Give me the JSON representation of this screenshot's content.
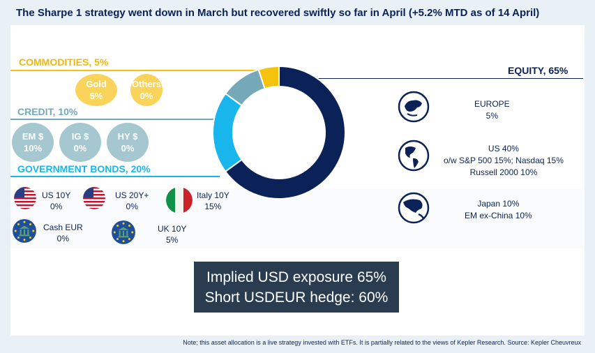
{
  "title": "The Sharpe 1 strategy went down in March but recovered swiftly so far in April (+5.2% MTD as of 14 April)",
  "colors": {
    "equity": "#0b2259",
    "gov": "#19b6ee",
    "credit": "#75a9b8",
    "commodities": "#f5c20d",
    "navy": "#0b2259"
  },
  "sections": {
    "commodities": "COMMODITIES, 5%",
    "credit": "CREDIT, 10%",
    "government_bonds": "GOVERNMENT BONDS, 20%",
    "equity": "EQUITY, 65%"
  },
  "commodities_items": [
    {
      "name": "Gold",
      "pct": "5%"
    },
    {
      "name": "Others",
      "pct": "0%"
    }
  ],
  "credit_items": [
    {
      "name": "EM $",
      "pct": "10%"
    },
    {
      "name": "IG $",
      "pct": "0%"
    },
    {
      "name": "HY $",
      "pct": "0%"
    }
  ],
  "gov_items": [
    {
      "name": "US 10Y",
      "pct": "0%",
      "icon": "us-flag-icon"
    },
    {
      "name": "US 20Y+",
      "pct": "0%",
      "icon": "us-flag-icon"
    },
    {
      "name": "Italy 10Y",
      "pct": "15%",
      "icon": "italy-flag-icon"
    },
    {
      "name": "Cash EUR",
      "pct": "0%",
      "icon": "eu-bank-icon"
    },
    {
      "name": "UK 10Y",
      "pct": "5%",
      "icon": "eu-bank-icon"
    }
  ],
  "equity_items": [
    {
      "lines": [
        "EUROPE",
        "5%"
      ],
      "icon": "globe-europe-icon"
    },
    {
      "lines": [
        "US 40%",
        "o/w S&P 500 15%; Nasdaq 15%",
        "Russell 2000 10%"
      ],
      "icon": "globe-americas-icon"
    },
    {
      "lines": [
        "Japan 10%",
        "EM ex-China 10%"
      ],
      "icon": "globe-asia-icon"
    }
  ],
  "hedge": {
    "line1": "Implied USD exposure 65%",
    "line2": "Short USDEUR hedge: 60%"
  },
  "note": "Note; this asset allocation is a live strategy invested with ETFs. It is partially related to the views of Kepler Research. Source: Kepler Cheuvreux",
  "chart_data": {
    "type": "pie",
    "style": "donut",
    "categories": [
      "Equity",
      "Government bonds",
      "Credit",
      "Commodities"
    ],
    "values": [
      65,
      20,
      10,
      5
    ],
    "colors": [
      "#0b2259",
      "#19b6ee",
      "#75a9b8",
      "#f5c20d"
    ],
    "title": "",
    "start": "top, clockwise"
  }
}
